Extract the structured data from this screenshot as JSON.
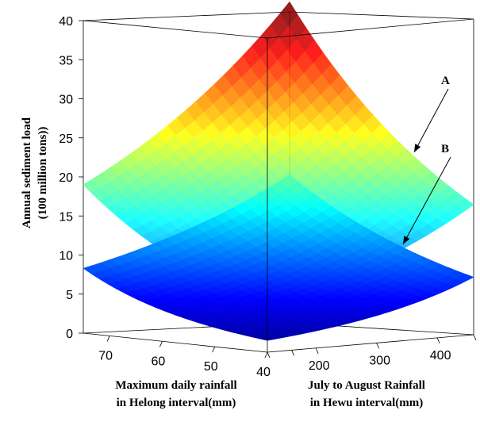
{
  "chart_data": {
    "type": "surface3d",
    "zlabel": [
      "Annual sediment load",
      "(100 million tons))"
    ],
    "xlabel": [
      "Maximum daily rainfall",
      "in Helong interval(mm)"
    ],
    "ylabel": [
      "July to August Rainfall",
      "in Hewu interval(mm)"
    ],
    "zlim": [
      0,
      40
    ],
    "z_ticks": [
      0,
      5,
      10,
      15,
      20,
      25,
      30,
      35,
      40
    ],
    "x_ticks": [
      70,
      60,
      50,
      40
    ],
    "y_ticks": [
      200,
      300,
      400
    ],
    "y_origin_label": "40",
    "series": [
      {
        "name": "A",
        "corners": [
          {
            "x": 75,
            "y": 460,
            "z": 41.3
          },
          {
            "x": 75,
            "y": 120,
            "z": 19.0
          },
          {
            "x": 40,
            "y": 460,
            "z": 16.5
          },
          {
            "x": 40,
            "y": 120,
            "z": 6.0
          }
        ]
      },
      {
        "name": "B",
        "corners": [
          {
            "x": 75,
            "y": 460,
            "z": 19.0
          },
          {
            "x": 75,
            "y": 120,
            "z": 8.3
          },
          {
            "x": 40,
            "y": 460,
            "z": 7.3
          },
          {
            "x": 40,
            "y": 120,
            "z": 1.5
          }
        ]
      }
    ],
    "annotations": [
      "A",
      "B"
    ]
  }
}
